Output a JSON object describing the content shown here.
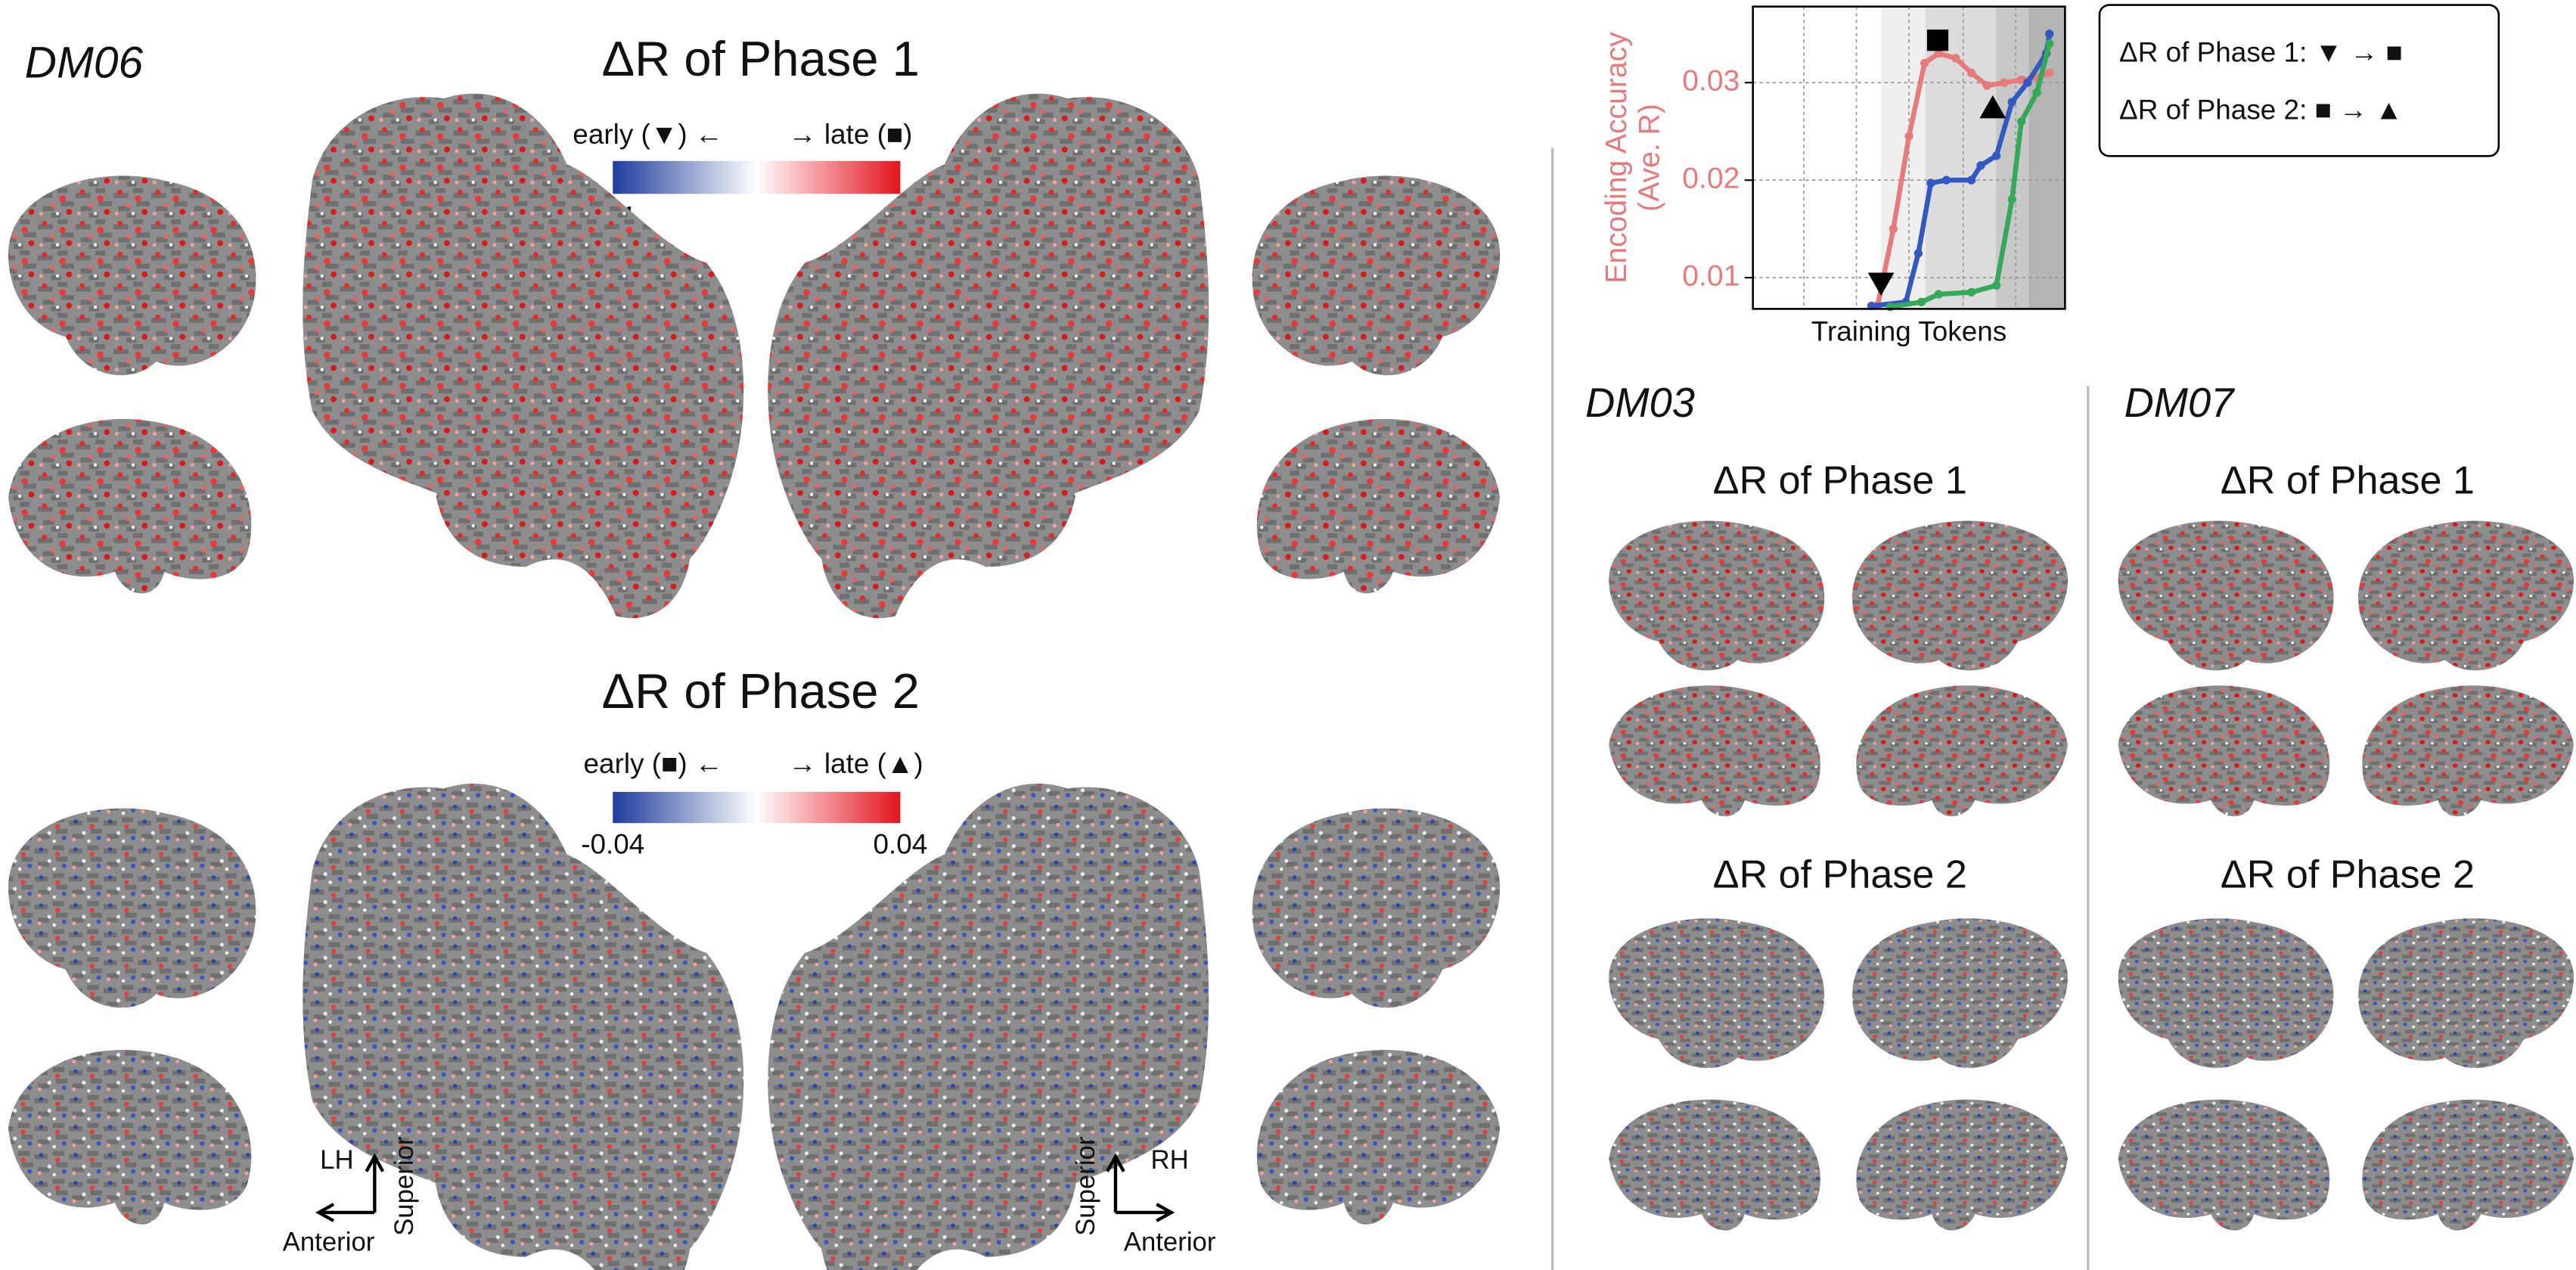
{
  "figure_label": "DM06",
  "phase1": {
    "title": "ΔR of Phase 1",
    "early": "early (▼) ←",
    "late": "→ late (■)",
    "cbar_min": "-0.1",
    "cbar_max": "0.1"
  },
  "phase2": {
    "title": "ΔR of Phase 2",
    "early": "early (■) ←",
    "late": "→ late (▲)",
    "cbar_min": "-0.04",
    "cbar_max": "0.04"
  },
  "orientation": {
    "lh": "LH",
    "rh": "RH",
    "superior": "Superior",
    "anterior": "Anterior"
  },
  "legend": [
    "ΔR of Phase 1:  ▼ → ■",
    "ΔR of Phase 2:  ■ → ▲"
  ],
  "subjects": [
    {
      "label": "DM03",
      "phase1": "ΔR of Phase 1",
      "phase2": "ΔR of Phase 2"
    },
    {
      "label": "DM07",
      "phase1": "ΔR of Phase 1",
      "phase2": "ΔR of Phase 2"
    }
  ],
  "chart_data": {
    "type": "line",
    "ylabel": [
      "Encoding Accuracy",
      "(Ave. R)"
    ],
    "xlabel": "Training Tokens",
    "xlim": [
      0,
      100
    ],
    "ylim": [
      0.0068,
      0.0378
    ],
    "yticks": [
      0.01,
      0.02,
      0.03
    ],
    "grid": true,
    "series": [
      {
        "color": "#e57b7d",
        "x": [
          40,
          45,
          50,
          55,
          59.5,
          65,
          70,
          75,
          80.5,
          86,
          91,
          95
        ],
        "values": [
          0.0072,
          0.015,
          0.0245,
          0.032,
          0.033,
          0.0325,
          0.031,
          0.0297,
          0.03,
          0.0303,
          0.0305,
          0.031
        ]
      },
      {
        "color": "#3358c0",
        "x": [
          38,
          49,
          53,
          57,
          62,
          70,
          73,
          78,
          83,
          88,
          94,
          95
        ],
        "values": [
          0.0071,
          0.0075,
          0.0125,
          0.0197,
          0.02,
          0.02,
          0.0215,
          0.0225,
          0.028,
          0.03,
          0.033,
          0.035
        ]
      },
      {
        "color": "#36a85a",
        "x": [
          44,
          54,
          59.5,
          70,
          78,
          83,
          86,
          91,
          95
        ],
        "values": [
          0.007,
          0.0075,
          0.0083,
          0.0085,
          0.0092,
          0.018,
          0.026,
          0.029,
          0.034
        ]
      }
    ]
  }
}
